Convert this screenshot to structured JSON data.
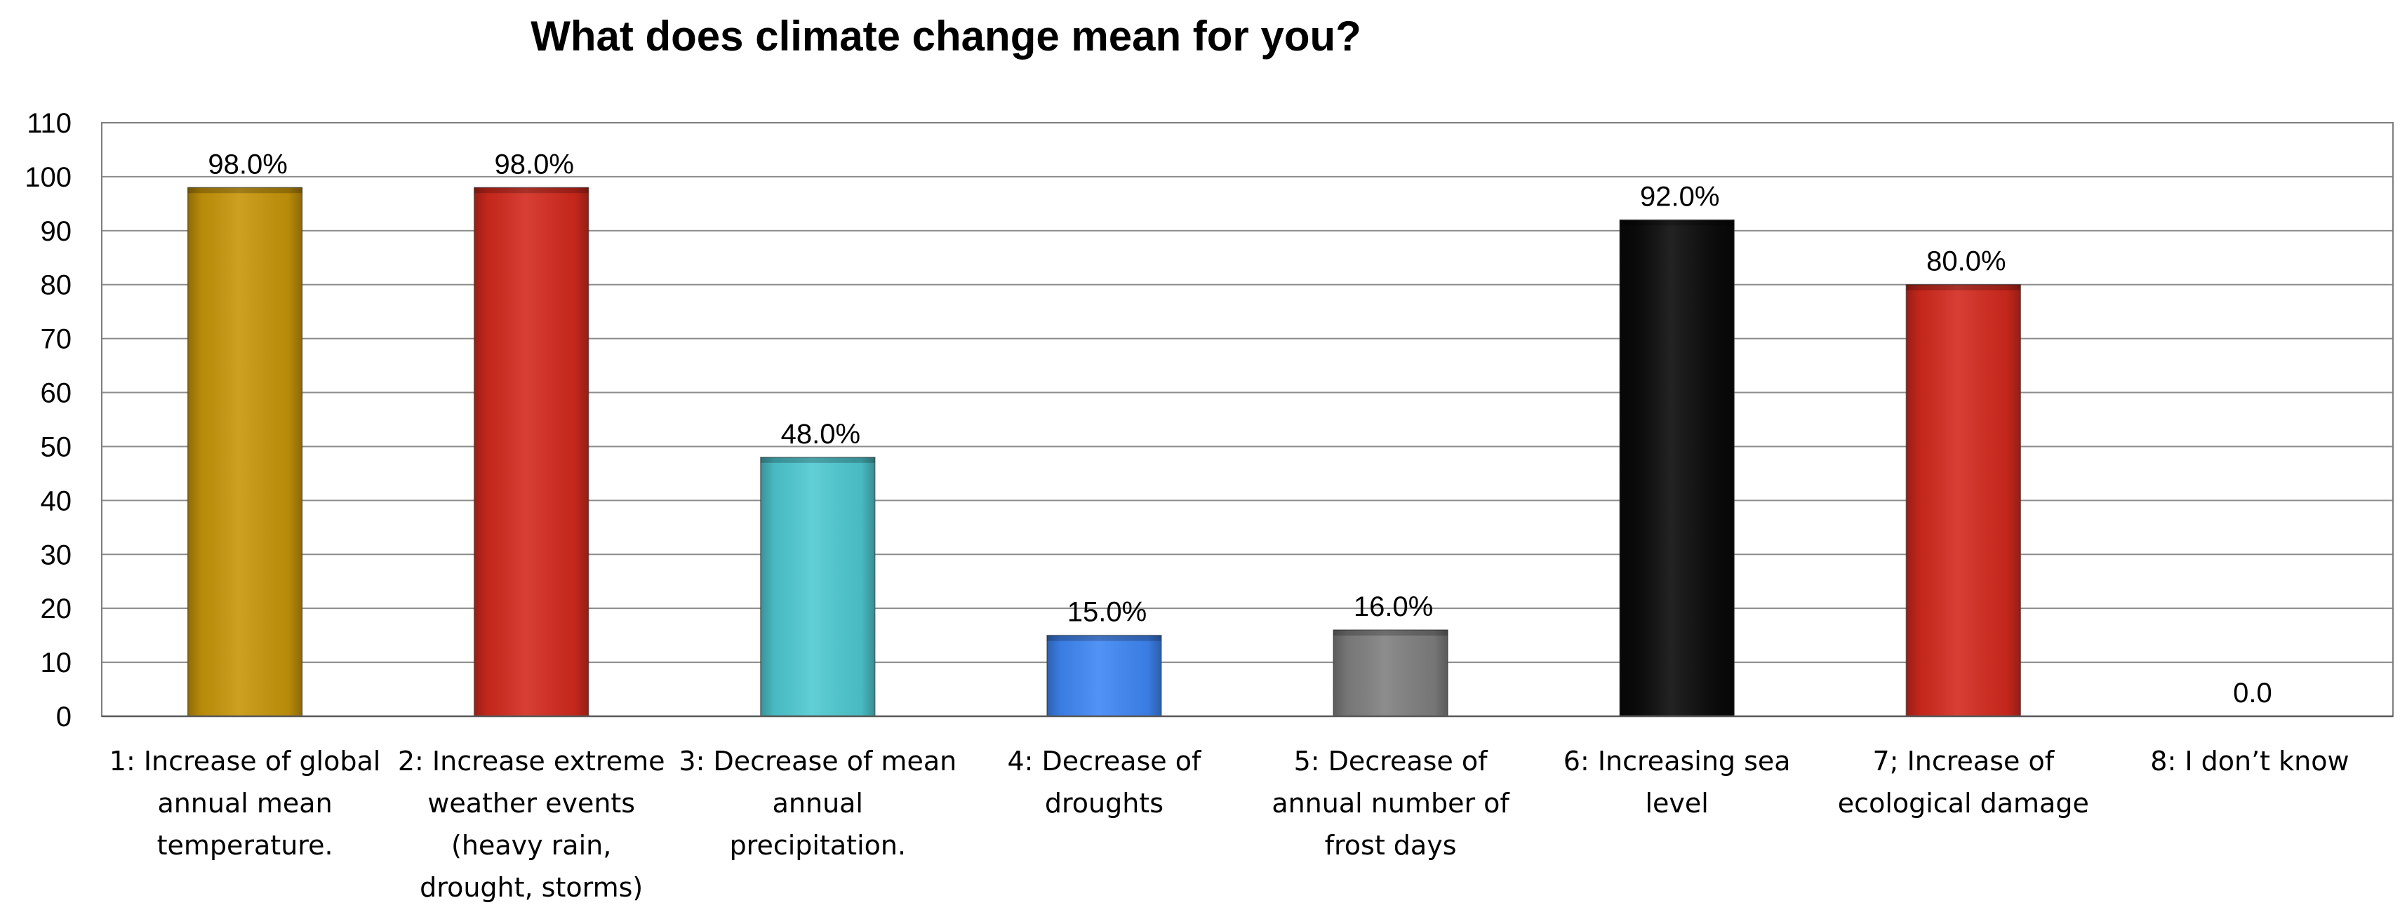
{
  "chart_data": {
    "type": "bar",
    "title": "What does climate change mean for you?",
    "xlabel": "",
    "ylabel": "",
    "ylim": [
      0,
      110
    ],
    "yticks": [
      0,
      10,
      20,
      30,
      40,
      50,
      60,
      70,
      80,
      90,
      100,
      110
    ],
    "grid": true,
    "legend": "none",
    "categories": [
      [
        "1: Increase of global",
        "annual mean",
        "temperature."
      ],
      [
        "2: Increase extreme",
        "weather events",
        "(heavy rain,",
        "drought, storms)"
      ],
      [
        "3: Decrease of mean",
        "annual",
        "precipitation."
      ],
      [
        "4: Decrease of",
        "droughts"
      ],
      [
        "5: Decrease of",
        "annual number of",
        "frost days"
      ],
      [
        "6: Increasing sea",
        "level"
      ],
      [
        "7; Increase of",
        "ecological damage"
      ],
      [
        "8: I don’t know"
      ]
    ],
    "values": [
      98.0,
      98.0,
      48.0,
      15.0,
      16.0,
      92.0,
      80.0,
      0.0
    ],
    "data_labels": [
      "98.0%",
      "98.0%",
      "48.0%",
      "15.0%",
      "16.0%",
      "92.0%",
      "80.0%",
      "0.0"
    ],
    "bar_colors": [
      "#C8960A",
      "#D42A1E",
      "#4FCAD2",
      "#3F87F5",
      "#808080",
      "#0A0A0A",
      "#D42A1E",
      "#FFFFFF"
    ]
  }
}
